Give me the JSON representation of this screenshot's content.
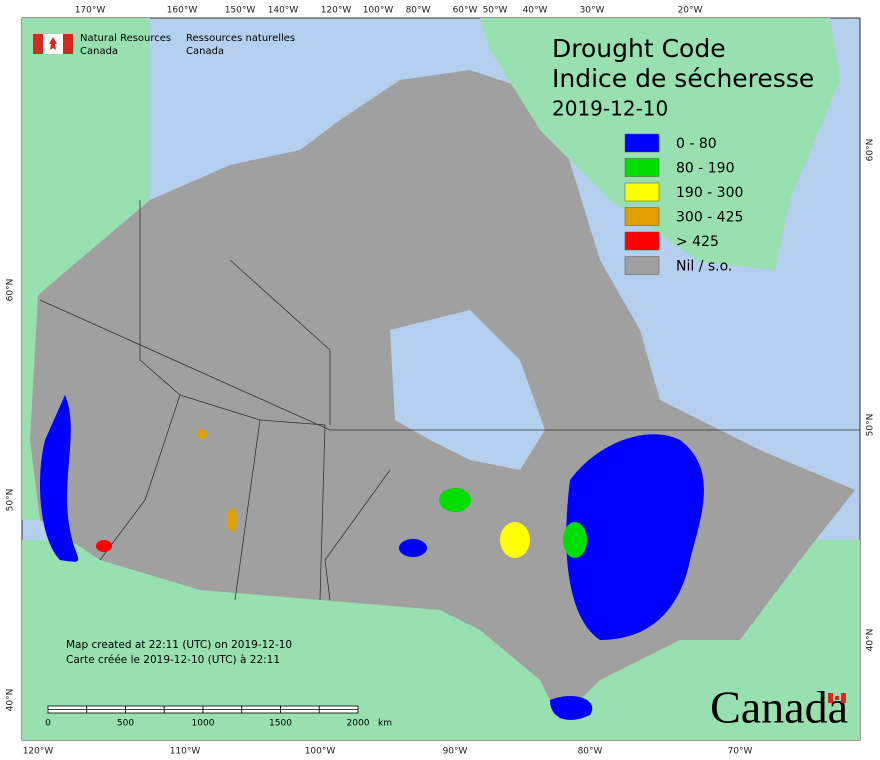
{
  "agency": {
    "en_line1": "Natural Resources",
    "en_line2": "Canada",
    "fr_line1": "Ressources naturelles",
    "fr_line2": "Canada"
  },
  "title": {
    "en": "Drought Code",
    "fr": "Indice de sécheresse",
    "date": "2019-12-10"
  },
  "legend": [
    {
      "label": "0 - 80",
      "color": "#0000ff"
    },
    {
      "label": "80 - 190",
      "color": "#00dd00"
    },
    {
      "label": "190 - 300",
      "color": "#ffff00"
    },
    {
      "label": "300 - 425",
      "color": "#e0a000"
    },
    {
      "label": "> 425",
      "color": "#ff0000"
    },
    {
      "label": "Nil / s.o.",
      "color": "#a0a0a0"
    }
  ],
  "notes": [
    "Map created at 22:11 (UTC) on 2019-12-10",
    "Carte créée le 2019-12-10 (UTC) à 22:11"
  ],
  "scale_bar": {
    "labels": [
      0,
      500,
      1000,
      1500,
      2000
    ],
    "unit": "km"
  },
  "graticule": {
    "top": [
      "170°W",
      "160°W",
      "150°W",
      "140°W",
      "120°W",
      "100°W",
      "80°W",
      "60°W",
      "50°W",
      "40°W",
      "30°W",
      "20°W"
    ],
    "bottom": [
      "120°W",
      "110°W",
      "100°W",
      "90°W",
      "80°W",
      "70°W"
    ],
    "left": [
      "60°N",
      "50°N",
      "40°N"
    ],
    "right": [
      "60°N",
      "50°N",
      "40°N"
    ]
  },
  "wordmark": "Canada"
}
